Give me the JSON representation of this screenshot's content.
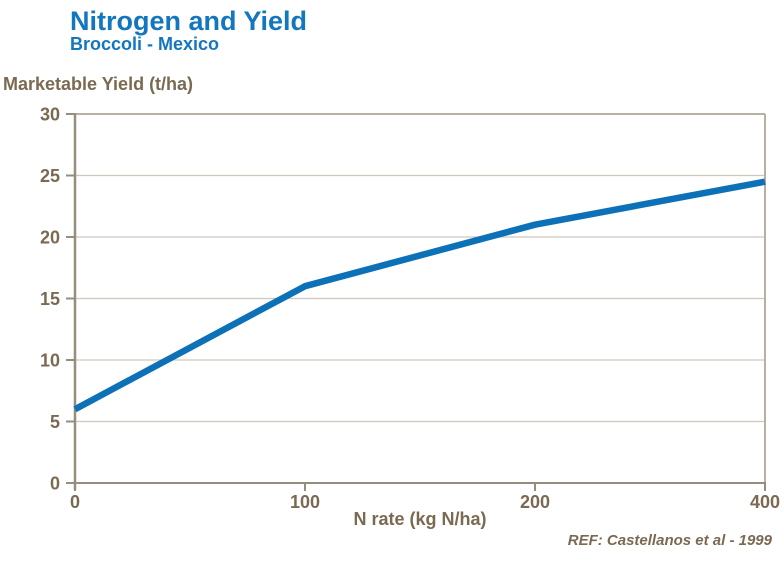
{
  "header": {
    "title": "Nitrogen and Yield",
    "subtitle": "Broccoli - Mexico"
  },
  "footer": {
    "reference": "REF: Castellanos et al - 1999"
  },
  "chart_data": {
    "type": "line",
    "title": "Nitrogen and Yield",
    "subtitle": "Broccoli - Mexico",
    "categories": [
      "0",
      "100",
      "200",
      "400"
    ],
    "series": [
      {
        "name": "Marketable Yield",
        "values": [
          6,
          16,
          21,
          24.5
        ]
      }
    ],
    "xlabel": "N rate (kg N/ha)",
    "ylabel": "Marketable Yield (t/ha)",
    "ylim": [
      0,
      30
    ],
    "yticks": [
      0,
      5,
      10,
      15,
      20,
      25,
      30
    ],
    "grid": "horizontal-lines at 5,10,15,20,25; top and right plot border",
    "legend": "none",
    "reference": "REF: Castellanos et al - 1999"
  },
  "colors": {
    "title_blue": "#1277BE",
    "line_blue": "#0D71B8",
    "text_brown": "#7B6A52",
    "axis": "#978D7F",
    "plot_border": "#B9B0A4",
    "gridline": "#CFC7BD",
    "background": "#FFFFFF"
  }
}
